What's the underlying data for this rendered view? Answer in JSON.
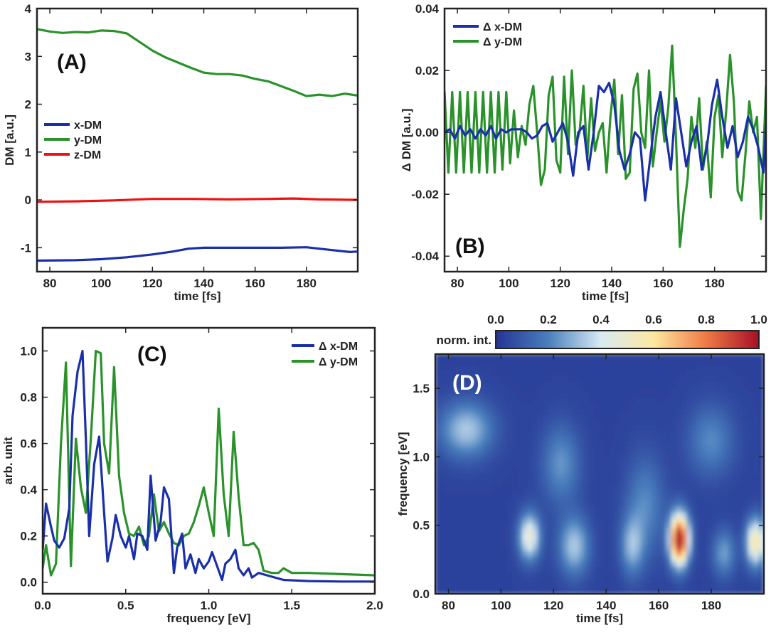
{
  "colors": {
    "x_dm": "#1a2faa",
    "y_dm": "#2a922a",
    "z_dm": "#ee1111",
    "axis": "#222222"
  },
  "chart_data": [
    {
      "id": "A",
      "panel_label": "(A)",
      "type": "line",
      "xlabel": "time [fs]",
      "ylabel": "DM [a.u.]",
      "xlim": [
        75,
        200
      ],
      "ylim": [
        -1.5,
        4
      ],
      "xticks": [
        80,
        100,
        120,
        140,
        160,
        180
      ],
      "yticks": [
        -1,
        0,
        1,
        2,
        3,
        4
      ],
      "ytick_labels": [
        "-1",
        "0",
        "1",
        "2",
        "3",
        "4"
      ],
      "legend_position": "middle-left",
      "series": [
        {
          "name": "x-DM",
          "color_key": "x_dm",
          "x": [
            75,
            90,
            100,
            110,
            120,
            128,
            134,
            140,
            150,
            160,
            170,
            180,
            190,
            197,
            200
          ],
          "y": [
            -1.27,
            -1.26,
            -1.24,
            -1.2,
            -1.14,
            -1.08,
            -1.02,
            -1.0,
            -1.0,
            -1.0,
            -1.0,
            -0.99,
            -1.05,
            -1.09,
            -1.08
          ]
        },
        {
          "name": "y-DM",
          "color_key": "y_dm",
          "x": [
            75,
            80,
            85,
            90,
            95,
            100,
            105,
            110,
            115,
            120,
            125,
            130,
            135,
            140,
            145,
            150,
            155,
            160,
            165,
            170,
            175,
            180,
            185,
            190,
            195,
            200
          ],
          "y": [
            3.57,
            3.52,
            3.49,
            3.51,
            3.5,
            3.54,
            3.53,
            3.48,
            3.3,
            3.12,
            2.98,
            2.87,
            2.76,
            2.66,
            2.63,
            2.63,
            2.6,
            2.53,
            2.48,
            2.38,
            2.28,
            2.17,
            2.2,
            2.17,
            2.22,
            2.18
          ]
        },
        {
          "name": "z-DM",
          "color_key": "z_dm",
          "x": [
            75,
            90,
            105,
            120,
            135,
            150,
            165,
            175,
            185,
            200
          ],
          "y": [
            -0.04,
            -0.03,
            -0.01,
            0.02,
            0.02,
            0.01,
            0.02,
            0.03,
            0.01,
            0.0
          ]
        }
      ]
    },
    {
      "id": "B",
      "panel_label": "(B)",
      "type": "line",
      "xlabel": "time [fs]",
      "ylabel": "Δ DM [a.u.]",
      "xlim": [
        75,
        200
      ],
      "ylim": [
        -0.045,
        0.04
      ],
      "xticks": [
        80,
        100,
        120,
        140,
        160,
        180
      ],
      "yticks": [
        -0.04,
        -0.02,
        0.0,
        0.02,
        0.04
      ],
      "ytick_labels": [
        "-0.04",
        "-0.02",
        "0.00",
        "0.02",
        "0.04"
      ],
      "legend_position": "top-left",
      "series": [
        {
          "name": "Δ x-DM",
          "color_key": "x_dm",
          "x": [
            75,
            77,
            79,
            81,
            83,
            85,
            87,
            89,
            91,
            93,
            95,
            97,
            99,
            101,
            103,
            105,
            107,
            109,
            111,
            113,
            115,
            117,
            119,
            121,
            123,
            125,
            127,
            129,
            131,
            133,
            135,
            137,
            139,
            141,
            143,
            145,
            147,
            149,
            151,
            153,
            155,
            157,
            159,
            161,
            163,
            165,
            167,
            169,
            171,
            173,
            175,
            177,
            179,
            181,
            183,
            185,
            187,
            189,
            191,
            193,
            195,
            197,
            199,
            200
          ],
          "y": [
            0.0,
            0.001,
            -0.002,
            0.002,
            -0.001,
            0.001,
            -0.002,
            0.001,
            -0.001,
            0.002,
            -0.002,
            0.001,
            0.0,
            0.001,
            0.001,
            0.001,
            0.0,
            -0.002,
            -0.001,
            0.002,
            0.003,
            -0.003,
            0.0,
            0.003,
            -0.003,
            -0.014,
            0.0,
            0.002,
            -0.012,
            0.0,
            0.015,
            0.013,
            0.016,
            0.009,
            -0.006,
            -0.012,
            -0.007,
            0.0,
            -0.002,
            -0.022,
            -0.008,
            0.005,
            0.013,
            0.0,
            -0.012,
            0.011,
            0.0,
            -0.011,
            -0.003,
            0.002,
            -0.012,
            -0.005,
            0.009,
            0.017,
            0.005,
            -0.005,
            0.002,
            -0.008,
            -0.003,
            0.005,
            0.001,
            -0.005,
            -0.013,
            0.002
          ]
        },
        {
          "name": "Δ y-DM",
          "color_key": "y_dm",
          "x": [
            75,
            76.5,
            78,
            79.5,
            81,
            82.5,
            84,
            85.5,
            87,
            88.5,
            90,
            91.5,
            93,
            94.5,
            96,
            97.5,
            99,
            100.5,
            102,
            103.5,
            105,
            106.5,
            108,
            109.5,
            111,
            112.5,
            114,
            115.5,
            117,
            118.5,
            120,
            121.5,
            123,
            124.5,
            126,
            127.5,
            129,
            130.5,
            132,
            133.5,
            135,
            136.5,
            138,
            139.5,
            141,
            142.5,
            144,
            145.5,
            147,
            148.5,
            150,
            151.5,
            153,
            154.5,
            156,
            157.5,
            159,
            160.5,
            162,
            163.5,
            165,
            166.5,
            168,
            169.5,
            171,
            172.5,
            174,
            175.5,
            177,
            178.5,
            180,
            181.5,
            183,
            184.5,
            186,
            187.5,
            189,
            190.5,
            192,
            193.5,
            195,
            196.5,
            198,
            200
          ],
          "y": [
            0.013,
            -0.013,
            0.013,
            -0.013,
            0.013,
            -0.013,
            0.013,
            -0.013,
            0.013,
            -0.013,
            0.013,
            -0.013,
            0.013,
            -0.013,
            0.013,
            -0.012,
            0.013,
            -0.01,
            0.007,
            -0.008,
            0.002,
            -0.004,
            0.009,
            0.015,
            0.0,
            -0.017,
            -0.012,
            0.012,
            0.018,
            -0.009,
            -0.013,
            0.018,
            -0.007,
            0.02,
            -0.004,
            0.0,
            0.015,
            -0.009,
            0.011,
            -0.006,
            0.0,
            0.003,
            -0.013,
            0.005,
            0.017,
            -0.007,
            0.012,
            -0.015,
            -0.013,
            0.014,
            0.019,
            0.0,
            -0.005,
            0.02,
            -0.011,
            0.0,
            0.01,
            -0.003,
            0.008,
            0.028,
            -0.002,
            -0.037,
            -0.025,
            -0.015,
            0.005,
            -0.005,
            0.011,
            -0.012,
            -0.003,
            -0.021,
            0.005,
            0.012,
            -0.008,
            0.007,
            0.025,
            0.01,
            -0.019,
            -0.022,
            -0.007,
            0.01,
            0.0,
            0.005,
            -0.028,
            0.015
          ]
        }
      ]
    },
    {
      "id": "C",
      "panel_label": "(C)",
      "type": "line",
      "xlabel": "frequency [eV]",
      "ylabel": "arb. unit",
      "xlim": [
        0,
        2
      ],
      "ylim": [
        -0.05,
        1.1
      ],
      "xticks": [
        0,
        0.5,
        1,
        1.5,
        2
      ],
      "xtick_labels": [
        "0.0",
        "0.5",
        "1.0",
        "1.5",
        "2.0"
      ],
      "yticks": [
        0,
        0.2,
        0.4,
        0.6,
        0.8,
        1.0
      ],
      "ytick_labels": [
        "0.0",
        "0.2",
        "0.4",
        "0.6",
        "0.8",
        "1.0"
      ],
      "legend_position": "top-right",
      "series": [
        {
          "name": "Δ x-DM",
          "color_key": "x_dm",
          "x": [
            0,
            0.02,
            0.05,
            0.07,
            0.1,
            0.13,
            0.16,
            0.18,
            0.21,
            0.24,
            0.26,
            0.28,
            0.31,
            0.34,
            0.37,
            0.39,
            0.42,
            0.44,
            0.47,
            0.5,
            0.52,
            0.55,
            0.57,
            0.6,
            0.63,
            0.65,
            0.68,
            0.71,
            0.73,
            0.76,
            0.79,
            0.81,
            0.84,
            0.86,
            0.89,
            0.92,
            0.94,
            0.97,
            1.0,
            1.02,
            1.05,
            1.08,
            1.1,
            1.13,
            1.16,
            1.18,
            1.21,
            1.24,
            1.26,
            1.3,
            1.35,
            1.45,
            1.6,
            1.8,
            2.0
          ],
          "y": [
            0.14,
            0.34,
            0.24,
            0.18,
            0.15,
            0.19,
            0.32,
            0.72,
            0.91,
            1.0,
            0.62,
            0.2,
            0.51,
            0.63,
            0.3,
            0.09,
            0.19,
            0.29,
            0.2,
            0.15,
            0.2,
            0.1,
            0.21,
            0.2,
            0.14,
            0.46,
            0.18,
            0.26,
            0.41,
            0.36,
            0.04,
            0.15,
            0.21,
            0.06,
            0.12,
            0.04,
            0.1,
            0.06,
            0.09,
            0.13,
            0.07,
            0.01,
            0.08,
            0.1,
            0.14,
            0.06,
            0.03,
            0.06,
            0.02,
            0.04,
            0.03,
            0.01,
            0.005,
            0.003,
            0.003
          ]
        },
        {
          "name": "Δ y-DM",
          "color_key": "y_dm",
          "x": [
            0,
            0.02,
            0.05,
            0.08,
            0.11,
            0.14,
            0.17,
            0.2,
            0.23,
            0.26,
            0.29,
            0.32,
            0.35,
            0.37,
            0.4,
            0.43,
            0.46,
            0.49,
            0.52,
            0.55,
            0.58,
            0.61,
            0.64,
            0.67,
            0.7,
            0.73,
            0.76,
            0.79,
            0.82,
            0.85,
            0.88,
            0.91,
            0.94,
            0.97,
            1.0,
            1.03,
            1.06,
            1.09,
            1.12,
            1.15,
            1.18,
            1.21,
            1.24,
            1.27,
            1.3,
            1.33,
            1.38,
            1.42,
            1.45,
            1.5,
            1.6,
            1.8,
            2.0
          ],
          "y": [
            0.06,
            0.16,
            0.03,
            0.08,
            0.6,
            0.95,
            0.07,
            0.62,
            0.41,
            0.3,
            0.62,
            1.0,
            0.99,
            0.6,
            0.47,
            0.93,
            0.46,
            0.3,
            0.21,
            0.2,
            0.24,
            0.16,
            0.2,
            0.38,
            0.22,
            0.26,
            0.21,
            0.17,
            0.16,
            0.2,
            0.21,
            0.26,
            0.33,
            0.41,
            0.3,
            0.2,
            0.75,
            0.38,
            0.2,
            0.65,
            0.37,
            0.16,
            0.16,
            0.17,
            0.14,
            0.05,
            0.04,
            0.04,
            0.06,
            0.04,
            0.04,
            0.035,
            0.03
          ]
        }
      ]
    },
    {
      "id": "D",
      "panel_label": "(D)",
      "type": "heatmap",
      "xlabel": "time [fs]",
      "ylabel": "frequency [eV]",
      "xlim": [
        75,
        200
      ],
      "ylim": [
        0,
        1.75
      ],
      "xticks": [
        80,
        100,
        120,
        140,
        160,
        180
      ],
      "yticks": [
        0,
        0.5,
        1.0,
        1.5
      ],
      "ytick_labels": [
        "0.0",
        "0.5",
        "1.0",
        "1.5"
      ],
      "colorbar": {
        "label": "norm. int.",
        "range": [
          0,
          1
        ],
        "ticks": [
          0,
          0.2,
          0.4,
          0.6,
          0.8,
          1.0
        ],
        "tick_labels": [
          "0.0",
          "0.2",
          "0.4",
          "0.6",
          "0.8",
          "1.0"
        ]
      },
      "features": [
        {
          "t": 87,
          "f": 1.2,
          "intensity": 0.3,
          "width_t": 7,
          "width_f": 0.14
        },
        {
          "t": 168,
          "f": 0.4,
          "intensity": 1.0,
          "width_t": 2.5,
          "width_f": 0.13
        },
        {
          "t": 197,
          "f": 0.38,
          "intensity": 0.55,
          "width_t": 2.5,
          "width_f": 0.12
        },
        {
          "t": 111,
          "f": 0.42,
          "intensity": 0.45,
          "width_t": 2.8,
          "width_f": 0.12
        },
        {
          "t": 128,
          "f": 0.35,
          "intensity": 0.3,
          "width_t": 4,
          "width_f": 0.15
        },
        {
          "t": 150,
          "f": 0.35,
          "intensity": 0.25,
          "width_t": 3,
          "width_f": 0.15
        },
        {
          "t": 185,
          "f": 0.3,
          "intensity": 0.22,
          "width_t": 3,
          "width_f": 0.12
        },
        {
          "t": 123,
          "f": 0.95,
          "intensity": 0.2,
          "width_t": 5,
          "width_f": 0.2
        },
        {
          "t": 180,
          "f": 1.12,
          "intensity": 0.18,
          "width_t": 6,
          "width_f": 0.18
        },
        {
          "t": 155,
          "f": 0.65,
          "intensity": 0.18,
          "width_t": 5,
          "width_f": 0.25
        }
      ]
    }
  ]
}
